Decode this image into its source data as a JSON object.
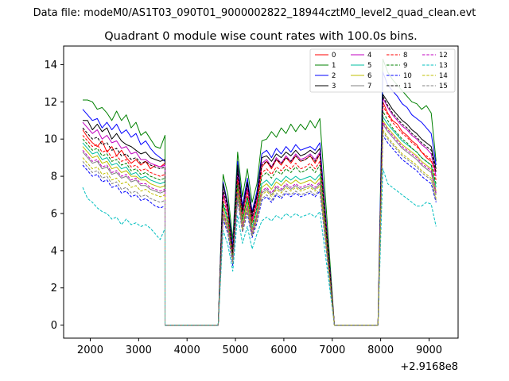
{
  "figure": {
    "suptitle": "Data file: modeM0/AS1T03_090T01_9000002822_18944cztM0_level2_quad_clean.evt",
    "offset_label": "+2.9168e8"
  },
  "chart_data": {
    "type": "line",
    "title": "Quadrant 0 module wise count rates with 100.0s bins.",
    "xlabel": "",
    "ylabel": "",
    "x_offset": 291680000,
    "xlim": [
      1450,
      9600
    ],
    "ylim": [
      -0.7,
      15
    ],
    "xticks": [
      2000,
      3000,
      4000,
      5000,
      6000,
      7000,
      8000,
      9000
    ],
    "xtick_labels": [
      "2000",
      "3000",
      "4000",
      "5000",
      "6000",
      "7000",
      "8000",
      "9000"
    ],
    "yticks": [
      0,
      2,
      4,
      6,
      8,
      10,
      12,
      14
    ],
    "ytick_labels": [
      "0",
      "2",
      "4",
      "6",
      "8",
      "10",
      "12",
      "14"
    ],
    "grid": false,
    "legend_position": "top-right",
    "legend_columns": 4,
    "bins": {
      "segment_1": {
        "start": 1845,
        "step": 100,
        "count": 18
      },
      "gap_1": {
        "start": 3545,
        "end": 4645
      },
      "segment_2": {
        "start": 4745,
        "step": 100,
        "count": 21
      },
      "gap_2": {
        "start": 7045,
        "end": 7945
      },
      "segment_3": {
        "start": 8045,
        "step": 100,
        "count": 12
      }
    },
    "series": [
      {
        "name": "0",
        "color": "#ff0000",
        "dash": "solid",
        "seg1": [
          10.5,
          10.1,
          9.8,
          9.6,
          9.9,
          9.3,
          9.6,
          9.1,
          9.4,
          9.0,
          8.7,
          8.9,
          8.6,
          8.8,
          8.4,
          8.6,
          8.5,
          8.7
        ],
        "seg2": [
          7.0,
          6.2,
          3.8,
          8.0,
          6.0,
          7.3,
          5.6,
          6.6,
          8.5,
          8.8,
          8.4,
          8.9,
          8.6,
          9.0,
          8.7,
          9.1,
          8.8,
          8.9,
          9.1,
          8.7,
          9.2
        ],
        "seg3": [
          12.0,
          11.4,
          11.0,
          10.8,
          10.4,
          10.2,
          9.9,
          9.7,
          9.3,
          9.0,
          8.8,
          8.3
        ]
      },
      {
        "name": "1",
        "color": "#008000",
        "dash": "solid",
        "seg1": [
          12.1,
          12.1,
          12.0,
          11.6,
          11.7,
          11.4,
          11.0,
          11.5,
          11.0,
          11.3,
          10.6,
          10.9,
          10.2,
          10.4,
          10.0,
          9.6,
          9.5,
          10.2
        ],
        "seg2": [
          8.1,
          7.0,
          4.6,
          9.3,
          6.9,
          8.4,
          6.6,
          7.6,
          9.9,
          10.0,
          10.4,
          10.1,
          10.6,
          10.3,
          10.8,
          10.4,
          10.8,
          10.5,
          11.0,
          10.6,
          11.1
        ],
        "seg3": [
          14.3,
          13.6,
          13.2,
          12.9,
          12.6,
          12.3,
          12.0,
          11.9,
          11.6,
          11.8,
          11.4,
          8.8
        ]
      },
      {
        "name": "2",
        "color": "#0000ff",
        "dash": "solid",
        "seg1": [
          11.6,
          11.3,
          11.0,
          11.1,
          10.6,
          10.9,
          10.5,
          10.8,
          10.3,
          10.5,
          10.1,
          10.3,
          9.7,
          9.9,
          9.5,
          9.2,
          9.0,
          8.8
        ],
        "seg2": [
          7.7,
          6.5,
          4.2,
          8.8,
          6.4,
          7.9,
          6.1,
          7.2,
          9.2,
          9.4,
          9.0,
          9.5,
          9.2,
          9.6,
          9.3,
          9.7,
          9.4,
          9.5,
          9.6,
          9.4,
          9.8
        ],
        "seg3": [
          13.6,
          12.9,
          12.6,
          12.3,
          11.9,
          11.7,
          11.3,
          11.1,
          10.9,
          10.6,
          10.3,
          8.6
        ]
      },
      {
        "name": "3",
        "color": "#000000",
        "dash": "solid",
        "seg1": [
          11.0,
          11.0,
          10.5,
          10.8,
          10.4,
          10.6,
          10.0,
          10.3,
          9.9,
          9.7,
          9.6,
          9.4,
          9.2,
          9.3,
          9.0,
          8.9,
          8.8,
          8.9
        ],
        "seg2": [
          7.6,
          6.4,
          4.0,
          8.6,
          6.2,
          7.7,
          6.0,
          7.0,
          9.0,
          9.1,
          8.8,
          9.2,
          9.0,
          9.3,
          9.1,
          9.4,
          9.1,
          9.2,
          9.4,
          9.2,
          9.5
        ],
        "seg3": [
          12.4,
          12.0,
          11.6,
          11.3,
          11.0,
          10.8,
          10.5,
          10.3,
          10.0,
          9.8,
          9.6,
          8.4
        ]
      },
      {
        "name": "4",
        "color": "#c000c0",
        "dash": "solid",
        "seg1": [
          10.9,
          10.6,
          10.3,
          10.5,
          10.0,
          10.2,
          9.8,
          9.9,
          9.5,
          9.6,
          9.2,
          9.3,
          8.9,
          8.9,
          8.7,
          8.6,
          8.5,
          8.6
        ],
        "seg2": [
          7.2,
          6.0,
          3.9,
          8.2,
          6.0,
          7.4,
          5.7,
          6.8,
          8.7,
          8.9,
          8.5,
          9.0,
          8.7,
          9.1,
          8.8,
          9.2,
          8.9,
          9.0,
          9.2,
          8.9,
          9.3
        ],
        "seg3": [
          12.2,
          11.7,
          11.3,
          11.0,
          10.7,
          10.5,
          10.2,
          10.0,
          9.7,
          9.5,
          9.2,
          8.0
        ]
      },
      {
        "name": "5",
        "color": "#00bfa0",
        "dash": "solid",
        "seg1": [
          9.8,
          9.5,
          9.2,
          9.3,
          8.9,
          9.0,
          8.6,
          8.7,
          8.4,
          8.5,
          8.1,
          8.2,
          7.9,
          8.0,
          7.8,
          7.7,
          7.6,
          7.7
        ],
        "seg2": [
          6.5,
          5.6,
          3.6,
          7.5,
          5.6,
          6.8,
          5.2,
          6.2,
          7.6,
          7.8,
          7.5,
          7.9,
          7.7,
          8.0,
          7.8,
          8.0,
          7.8,
          7.9,
          8.0,
          7.8,
          8.1
        ],
        "seg3": [
          11.2,
          10.8,
          10.5,
          10.2,
          9.9,
          9.7,
          9.5,
          9.3,
          9.0,
          8.8,
          8.6,
          7.4
        ]
      },
      {
        "name": "6",
        "color": "#bfbf00",
        "dash": "solid",
        "seg1": [
          9.6,
          9.3,
          9.0,
          9.1,
          8.7,
          8.8,
          8.4,
          8.5,
          8.2,
          8.3,
          8.0,
          8.0,
          7.8,
          7.8,
          7.6,
          7.5,
          7.4,
          7.5
        ],
        "seg2": [
          6.3,
          5.4,
          3.5,
          7.3,
          5.4,
          6.6,
          5.1,
          6.0,
          7.4,
          7.6,
          7.3,
          7.7,
          7.5,
          7.8,
          7.6,
          7.8,
          7.6,
          7.7,
          7.8,
          7.6,
          7.9
        ],
        "seg3": [
          11.0,
          10.6,
          10.3,
          10.0,
          9.7,
          9.5,
          9.3,
          9.1,
          8.8,
          8.6,
          8.4,
          7.2
        ]
      },
      {
        "name": "7",
        "color": "#808080",
        "dash": "solid",
        "seg1": [
          9.3,
          9.0,
          8.7,
          8.8,
          8.4,
          8.5,
          8.1,
          8.2,
          7.9,
          8.0,
          7.7,
          7.8,
          7.5,
          7.5,
          7.3,
          7.2,
          7.1,
          7.2
        ],
        "seg2": [
          6.0,
          5.2,
          3.4,
          7.0,
          5.2,
          6.3,
          4.9,
          5.8,
          7.1,
          7.3,
          7.0,
          7.4,
          7.2,
          7.5,
          7.3,
          7.5,
          7.3,
          7.4,
          7.5,
          7.3,
          7.6
        ],
        "seg3": [
          10.8,
          10.4,
          10.1,
          9.8,
          9.5,
          9.3,
          9.1,
          8.9,
          8.6,
          8.4,
          8.2,
          7.0
        ]
      },
      {
        "name": "8",
        "color": "#ff0000",
        "dash": "dashed",
        "seg1": [
          10.2,
          9.9,
          9.6,
          9.7,
          9.3,
          9.4,
          9.0,
          9.1,
          8.8,
          8.9,
          8.5,
          8.6,
          8.3,
          8.4,
          8.2,
          8.1,
          8.0,
          8.1
        ],
        "seg2": [
          6.8,
          5.9,
          3.7,
          7.8,
          5.8,
          7.1,
          5.5,
          6.5,
          8.2,
          8.4,
          8.1,
          8.5,
          8.3,
          8.6,
          8.4,
          8.7,
          8.4,
          8.5,
          8.7,
          8.4,
          8.8
        ],
        "seg3": [
          11.8,
          11.3,
          10.9,
          10.6,
          10.3,
          10.1,
          9.8,
          9.6,
          9.3,
          9.1,
          8.9,
          7.8
        ]
      },
      {
        "name": "9",
        "color": "#008000",
        "dash": "dashed",
        "seg1": [
          10.0,
          9.7,
          9.4,
          9.5,
          9.1,
          9.2,
          8.8,
          8.9,
          8.6,
          8.7,
          8.3,
          8.4,
          8.1,
          8.2,
          8.0,
          7.9,
          7.8,
          7.9
        ],
        "seg2": [
          6.6,
          5.7,
          3.6,
          7.6,
          5.7,
          6.9,
          5.4,
          6.3,
          8.0,
          8.2,
          7.9,
          8.3,
          8.1,
          8.4,
          8.2,
          8.5,
          8.2,
          8.3,
          8.5,
          8.2,
          8.6
        ],
        "seg3": [
          11.5,
          11.0,
          10.6,
          10.3,
          10.0,
          9.8,
          9.5,
          9.3,
          9.0,
          8.8,
          8.6,
          7.6
        ]
      },
      {
        "name": "10",
        "color": "#0000ff",
        "dash": "dashed",
        "seg1": [
          8.6,
          8.3,
          8.0,
          8.1,
          7.7,
          7.8,
          7.4,
          7.5,
          7.1,
          7.2,
          6.9,
          7.0,
          6.7,
          6.8,
          6.6,
          6.4,
          6.3,
          6.4
        ],
        "seg2": [
          5.7,
          4.9,
          3.2,
          6.7,
          5.0,
          6.0,
          4.7,
          5.5,
          6.7,
          6.9,
          6.6,
          7.0,
          6.8,
          7.1,
          6.9,
          7.1,
          6.9,
          7.0,
          7.1,
          6.9,
          7.2
        ],
        "seg3": [
          10.2,
          9.8,
          9.5,
          9.2,
          8.9,
          8.7,
          8.5,
          8.3,
          8.0,
          7.8,
          7.6,
          6.6
        ]
      },
      {
        "name": "11",
        "color": "#000000",
        "dash": "dashed",
        "seg1": [
          10.6,
          10.3,
          10.0,
          10.1,
          9.7,
          9.8,
          9.4,
          9.5,
          9.1,
          9.2,
          8.9,
          9.0,
          8.7,
          8.8,
          8.6,
          8.5,
          8.4,
          8.5
        ],
        "seg2": [
          7.3,
          6.3,
          3.9,
          8.3,
          6.1,
          7.6,
          5.8,
          6.9,
          8.6,
          8.8,
          8.5,
          8.9,
          8.7,
          9.0,
          8.8,
          9.1,
          8.8,
          8.9,
          9.1,
          8.8,
          9.2
        ],
        "seg3": [
          12.3,
          11.8,
          11.4,
          11.1,
          10.8,
          10.6,
          10.3,
          10.1,
          9.8,
          9.6,
          9.4,
          8.2
        ]
      },
      {
        "name": "12",
        "color": "#c000c0",
        "dash": "dashed",
        "seg1": [
          9.4,
          9.1,
          8.8,
          8.9,
          8.5,
          8.6,
          8.2,
          8.3,
          8.0,
          8.1,
          7.8,
          7.9,
          7.6,
          7.6,
          7.4,
          7.3,
          7.2,
          7.3
        ],
        "seg2": [
          6.1,
          5.3,
          3.5,
          7.1,
          5.3,
          6.4,
          5.0,
          5.9,
          7.2,
          7.4,
          7.1,
          7.5,
          7.3,
          7.6,
          7.4,
          7.6,
          7.4,
          7.5,
          7.6,
          7.4,
          7.7
        ],
        "seg3": [
          10.9,
          10.5,
          10.2,
          9.9,
          9.6,
          9.4,
          9.2,
          9.0,
          8.7,
          8.5,
          8.3,
          7.1
        ]
      },
      {
        "name": "13",
        "color": "#00bfbf",
        "dash": "dashed",
        "seg1": [
          7.4,
          6.8,
          6.6,
          6.3,
          6.1,
          6.0,
          5.7,
          5.8,
          5.4,
          5.7,
          5.4,
          5.5,
          5.3,
          5.4,
          5.2,
          4.9,
          4.6,
          5.2
        ],
        "seg2": [
          5.1,
          4.3,
          2.9,
          5.9,
          4.4,
          5.3,
          4.1,
          4.9,
          5.6,
          5.8,
          5.6,
          5.9,
          5.7,
          6.0,
          5.8,
          6.0,
          5.8,
          5.9,
          6.0,
          5.8,
          6.1
        ],
        "seg3": [
          8.4,
          7.6,
          7.4,
          7.2,
          7.0,
          6.8,
          6.6,
          6.4,
          6.4,
          6.6,
          6.5,
          5.3
        ]
      },
      {
        "name": "14",
        "color": "#bfbf00",
        "dash": "dashed",
        "seg1": [
          9.0,
          8.7,
          8.4,
          8.5,
          8.1,
          8.2,
          7.8,
          7.9,
          7.6,
          7.7,
          7.4,
          7.5,
          7.2,
          7.3,
          7.1,
          7.0,
          6.9,
          7.0
        ],
        "seg2": [
          5.9,
          5.1,
          3.4,
          6.9,
          5.1,
          6.2,
          4.8,
          5.7,
          7.0,
          7.2,
          6.9,
          7.3,
          7.1,
          7.4,
          7.2,
          7.4,
          7.2,
          7.3,
          7.4,
          7.2,
          7.5
        ],
        "seg3": [
          10.5,
          10.1,
          9.8,
          9.5,
          9.2,
          9.0,
          8.8,
          8.6,
          8.3,
          8.1,
          7.9,
          6.8
        ]
      },
      {
        "name": "15",
        "color": "#808080",
        "dash": "dashed",
        "seg1": [
          8.8,
          8.5,
          8.2,
          8.3,
          7.9,
          8.0,
          7.6,
          7.7,
          7.3,
          7.4,
          7.1,
          7.2,
          6.9,
          7.0,
          6.8,
          6.7,
          6.6,
          6.7
        ],
        "seg2": [
          5.8,
          5.0,
          3.3,
          6.8,
          5.0,
          6.1,
          4.8,
          5.6,
          6.8,
          7.0,
          6.7,
          7.1,
          6.9,
          7.2,
          7.0,
          7.2,
          7.0,
          7.1,
          7.2,
          7.0,
          7.3
        ],
        "seg3": [
          10.4,
          10.0,
          9.7,
          9.4,
          9.1,
          8.9,
          8.7,
          8.5,
          8.2,
          8.0,
          7.8,
          6.7
        ]
      }
    ]
  }
}
